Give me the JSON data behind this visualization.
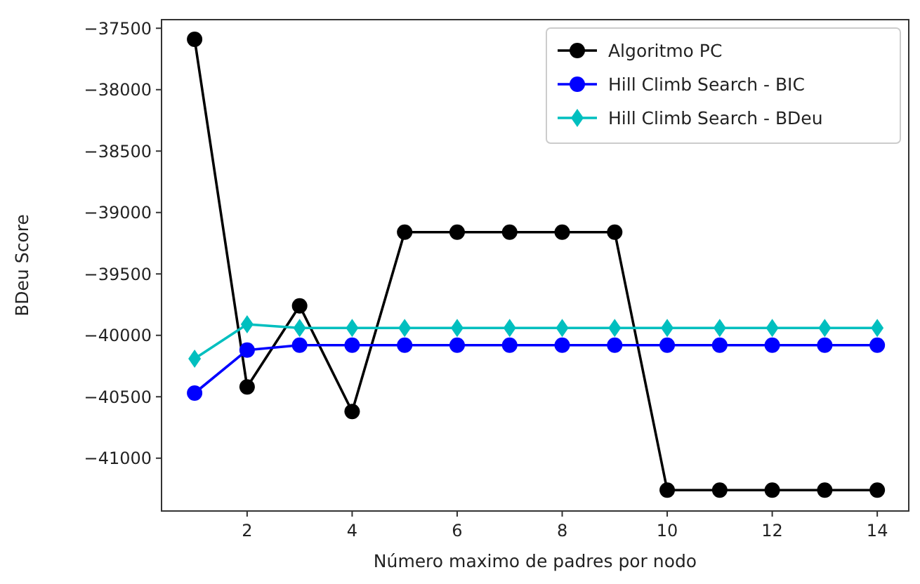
{
  "chart_data": {
    "type": "line",
    "xlabel": "Número maximo de padres por nodo",
    "ylabel": "BDeu Score",
    "x": [
      1,
      2,
      3,
      4,
      5,
      6,
      7,
      8,
      9,
      10,
      11,
      12,
      13,
      14
    ],
    "series": [
      {
        "name": "Algoritmo PC",
        "color": "#000000",
        "marker": "circle",
        "values": [
          -37590,
          -40420,
          -39760,
          -40620,
          -39160,
          -39160,
          -39160,
          -39160,
          -39160,
          -41260,
          -41260,
          -41260,
          -41260,
          -41260
        ]
      },
      {
        "name": "Hill Climb Search - BIC",
        "color": "#0000ff",
        "marker": "circle",
        "values": [
          -40470,
          -40120,
          -40080,
          -40080,
          -40080,
          -40080,
          -40080,
          -40080,
          -40080,
          -40080,
          -40080,
          -40080,
          -40080,
          -40080
        ]
      },
      {
        "name": "Hill Climb Search - BDeu",
        "color": "#00bfbf",
        "marker": "diamond",
        "values": [
          -40190,
          -39910,
          -39940,
          -39940,
          -39940,
          -39940,
          -39940,
          -39940,
          -39940,
          -39940,
          -39940,
          -39940,
          -39940,
          -39940
        ]
      }
    ],
    "xlim": [
      0.37,
      14.6
    ],
    "ylim": [
      -41430,
      -37430
    ],
    "xticks": [
      2,
      4,
      6,
      8,
      10,
      12,
      14
    ],
    "yticks": [
      {
        "value": -41000,
        "label": "−41000"
      },
      {
        "value": -40500,
        "label": "−40500"
      },
      {
        "value": -40000,
        "label": "−40000"
      },
      {
        "value": -39500,
        "label": "−39500"
      },
      {
        "value": -39000,
        "label": "−39000"
      },
      {
        "value": -38500,
        "label": "−38500"
      },
      {
        "value": -38000,
        "label": "−38000"
      },
      {
        "value": -37500,
        "label": "−37500"
      }
    ],
    "grid": false,
    "legend": "top right",
    "line_style": "solid"
  }
}
